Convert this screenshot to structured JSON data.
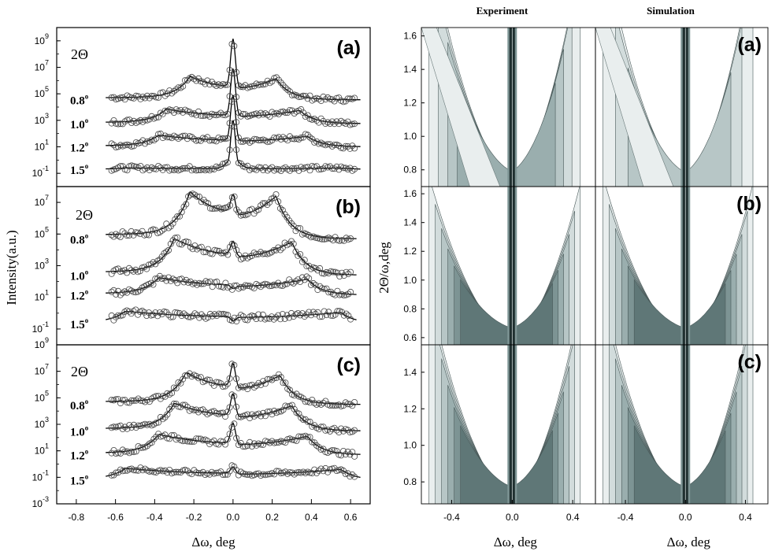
{
  "chart_data": [
    {
      "type": "scatter",
      "id": "left",
      "ylabel": "Intensity(a.u.)",
      "xlabel": "Δω, deg",
      "xlim": [
        -0.9,
        0.7
      ],
      "x_ticks": [
        "-0.8",
        "-0.6",
        "-0.4",
        "-0.2",
        "0.0",
        "0.2",
        "0.4",
        "0.6"
      ],
      "series_labels": [
        "0.8°",
        "1.0°",
        "1.2°",
        "1.5°"
      ],
      "panels": [
        {
          "label": "(a)",
          "theta_label": "2Θ",
          "y_ticks": [
            {
              "base": "10",
              "exp": "9"
            },
            {
              "base": "10",
              "exp": "7"
            },
            {
              "base": "10",
              "exp": "5"
            },
            {
              "base": "10",
              "exp": "3"
            },
            {
              "base": "10",
              "exp": "1"
            },
            {
              "base": "10",
              "exp": "-1"
            }
          ],
          "ylim_log10": [
            -2,
            10
          ],
          "curves": [
            {
              "angle": "0.8",
              "baseline": 4.55,
              "wing": 1.6,
              "wing_edge": 0.22,
              "peak": 9.15,
              "x_range": [
                -0.62,
                0.62
              ]
            },
            {
              "angle": "1.0",
              "baseline": 2.75,
              "wing": 1.0,
              "wing_edge": 0.34,
              "peak": 6.9,
              "x_range": [
                -0.62,
                0.62
              ]
            },
            {
              "angle": "1.2",
              "baseline": 1.0,
              "wing": 0.8,
              "wing_edge": 0.38,
              "peak": 4.9,
              "x_range": [
                -0.62,
                0.62
              ]
            },
            {
              "angle": "1.5",
              "baseline": -0.7,
              "wing": 0.1,
              "wing_edge": 0.55,
              "peak": 3.0,
              "x_range": [
                -0.62,
                0.62
              ]
            }
          ]
        },
        {
          "label": "(b)",
          "theta_label": "2Θ",
          "y_ticks": [
            {
              "base": "10",
              "exp": "7"
            },
            {
              "base": "10",
              "exp": "5"
            },
            {
              "base": "10",
              "exp": "3"
            },
            {
              "base": "10",
              "exp": "1"
            },
            {
              "base": "10",
              "exp": "-1"
            }
          ],
          "ylim_log10": [
            -2,
            8
          ],
          "curves": [
            {
              "angle": "0.8",
              "baseline": 4.7,
              "wing": 2.7,
              "wing_edge": 0.22,
              "peak": 7.5,
              "x_range": [
                -0.62,
                0.6
              ]
            },
            {
              "angle": "1.0",
              "baseline": 2.4,
              "wing": 2.1,
              "wing_edge": 0.3,
              "peak": 4.55,
              "x_range": [
                -0.62,
                0.6
              ]
            },
            {
              "angle": "1.2",
              "baseline": 1.15,
              "wing": 1.0,
              "wing_edge": 0.38,
              "peak": 1.55,
              "x_range": [
                -0.62,
                0.6
              ]
            },
            {
              "angle": "1.5",
              "baseline": -0.65,
              "wing": 0.7,
              "wing_edge": 0.55,
              "peak": -0.5,
              "x_range": [
                -0.62,
                0.6
              ]
            }
          ]
        },
        {
          "label": "(c)",
          "theta_label": "2Θ",
          "y_ticks": [
            {
              "base": "10",
              "exp": "9"
            },
            {
              "base": "10",
              "exp": "7"
            },
            {
              "base": "10",
              "exp": "5"
            },
            {
              "base": "10",
              "exp": "3"
            },
            {
              "base": "10",
              "exp": "1"
            },
            {
              "base": "10",
              "exp": "-1"
            },
            {
              "base": "10",
              "exp": "-3"
            }
          ],
          "ylim_log10": [
            -3,
            9
          ],
          "curves": [
            {
              "angle": "0.8",
              "baseline": 4.5,
              "wing": 2.2,
              "wing_edge": 0.24,
              "peak": 7.6,
              "x_range": [
                -0.62,
                0.62
              ]
            },
            {
              "angle": "1.0",
              "baseline": 2.5,
              "wing": 1.9,
              "wing_edge": 0.3,
              "peak": 5.3,
              "x_range": [
                -0.62,
                0.62
              ]
            },
            {
              "angle": "1.2",
              "baseline": 0.7,
              "wing": 1.4,
              "wing_edge": 0.38,
              "peak": 3.1,
              "x_range": [
                -0.62,
                0.62
              ]
            },
            {
              "angle": "1.5",
              "baseline": -1.2,
              "wing": 0.8,
              "wing_edge": 0.55,
              "peak": -0.2,
              "x_range": [
                -0.62,
                0.62
              ]
            }
          ]
        }
      ]
    },
    {
      "type": "heatmap",
      "id": "right",
      "columns": [
        "Experiment",
        "Simulation"
      ],
      "ylabel": "2Θ/ω,deg",
      "xlabel": "Δω, deg",
      "xlim": [
        -0.6,
        0.55
      ],
      "x_ticks": [
        -0.4,
        0.0,
        0.4
      ],
      "x_tick_labels": [
        "-0.4",
        "0.0",
        "0.4"
      ],
      "rows": [
        {
          "label": "(a)",
          "ylim": [
            0.7,
            1.65
          ],
          "y_ticks": [
            0.8,
            1.0,
            1.2,
            1.4,
            1.6
          ],
          "y_tick_labels": [
            "0.8",
            "1.0",
            "1.2",
            "1.4",
            "1.6"
          ]
        },
        {
          "label": "(b)",
          "ylim": [
            0.55,
            1.65
          ],
          "y_ticks": [
            0.6,
            0.8,
            1.0,
            1.2,
            1.4,
            1.6
          ],
          "y_tick_labels": [
            "0.6",
            "0.8",
            "1.0",
            "1.2",
            "1.4",
            "1.6"
          ]
        },
        {
          "label": "(c)",
          "ylim": [
            0.68,
            1.55
          ],
          "y_ticks": [
            0.8,
            1.0,
            1.2,
            1.4
          ],
          "y_tick_labels": [
            "0.8",
            "1.0",
            "1.2",
            "1.4"
          ]
        }
      ],
      "colors": {
        "level_1": "#e9eeee",
        "level_2": "#d2dcdc",
        "level_3": "#b7c6c6",
        "level_4": "#9aaeae",
        "level_5": "#7d9494",
        "level_6": "#5f7777",
        "streak": "#203030"
      }
    }
  ]
}
